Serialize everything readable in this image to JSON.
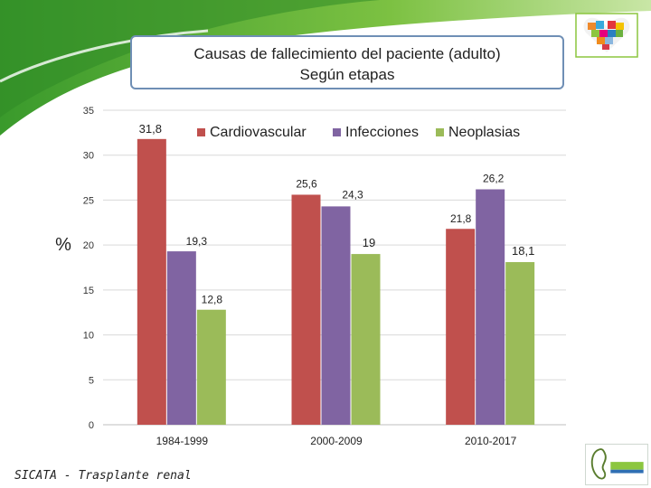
{
  "chart_data": {
    "type": "bar",
    "title": "Causas de fallecimiento del paciente (adulto)",
    "subtitle": "Según etapas",
    "ylabel": "%",
    "xlabel": "",
    "ylim": [
      0,
      35
    ],
    "yticks": [
      0,
      5,
      10,
      15,
      20,
      25,
      30,
      35
    ],
    "grid": true,
    "legend_position": "top-right",
    "categories": [
      "1984-1999",
      "2000-2009",
      "2010-2017"
    ],
    "series": [
      {
        "name": "Cardiovascular",
        "color": "#c0504d",
        "values": [
          31.8,
          25.6,
          21.8
        ],
        "labels": [
          "31,8",
          "25,6",
          "21,8"
        ]
      },
      {
        "name": "Infecciones",
        "color": "#8064a2",
        "values": [
          19.3,
          24.3,
          26.2
        ],
        "labels": [
          "19,3",
          "24,3",
          "26,2"
        ]
      },
      {
        "name": "Neoplasias",
        "color": "#9bbb59",
        "values": [
          12.8,
          19,
          18.1
        ],
        "labels": [
          "12,8",
          "19",
          "18,1"
        ]
      }
    ]
  },
  "footer": {
    "source": "SICATA - Trasplante renal"
  },
  "logos": {
    "top": "heart-mosaic-logo",
    "bottom": "nefrologia-logo"
  }
}
